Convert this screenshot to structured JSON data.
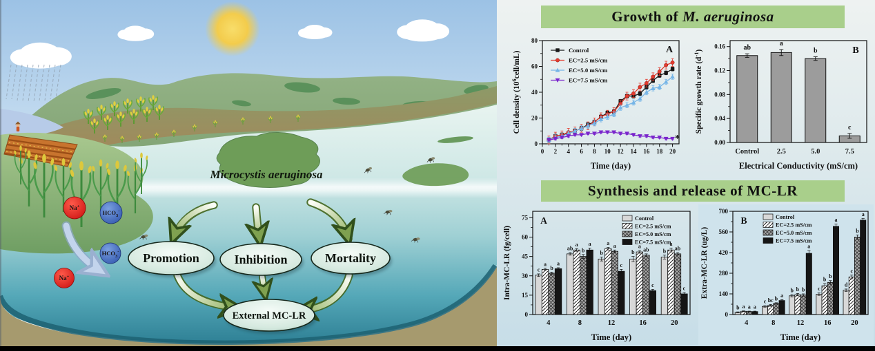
{
  "scene": {
    "organism_label": "Microcystis aeruginosa",
    "nodes": {
      "promotion": "Promotion",
      "inhibition": "Inhibition",
      "mortality": "Mortality",
      "external_mclr": "External MC-LR"
    },
    "ions": {
      "na_base": "Na",
      "na_sup": "+",
      "hco3_base": "HCO",
      "hco3_sub": "3",
      "hco3_sup": "-"
    }
  },
  "headers": {
    "growth_prefix": "Growth of",
    "growth_italic": "M. aeruginosa",
    "synthesis": "Synthesis and release of MC-LR",
    "header_bg": "#a9cf8b"
  },
  "chart_data": [
    {
      "id": "chart-growth-line",
      "type": "line",
      "panel_label": "A",
      "xlabel": "Time (day)",
      "ylabel_parts": [
        {
          "t": "Cell density (10"
        },
        {
          "t": "6",
          "sup": true
        },
        {
          "t": "cell/mL)"
        }
      ],
      "xlim": [
        0,
        21
      ],
      "ylim": [
        0,
        80
      ],
      "xticks": [
        0,
        2,
        4,
        6,
        8,
        10,
        12,
        14,
        16,
        18,
        20
      ],
      "yticks": [
        0,
        20,
        40,
        60,
        80
      ],
      "x": [
        1,
        2,
        3,
        4,
        5,
        6,
        7,
        8,
        9,
        10,
        11,
        12,
        13,
        14,
        15,
        16,
        17,
        18,
        19,
        20
      ],
      "series": [
        {
          "name": "Control",
          "color": "#1a1a1a",
          "marker": "square",
          "err": 1.5,
          "values": [
            3,
            6,
            7,
            8,
            10,
            12,
            15,
            17,
            21,
            24,
            25,
            33,
            37,
            37,
            39,
            44,
            49,
            53,
            55,
            58
          ]
        },
        {
          "name": "EC=2.5 mS/cm",
          "color": "#e23b2e",
          "marker": "circle",
          "err": 3,
          "values": [
            3,
            6,
            7,
            9,
            10,
            12,
            14,
            17,
            21,
            23,
            25,
            31,
            37,
            39,
            44,
            47,
            52,
            56,
            61,
            63
          ]
        },
        {
          "name": "EC=5.0 mS/cm",
          "color": "#76b5e7",
          "marker": "triangle-up",
          "err": 2,
          "values": [
            3,
            5,
            6,
            8,
            10,
            12,
            14,
            16,
            19,
            21,
            23,
            28,
            30,
            32,
            35,
            40,
            43,
            44,
            48,
            52
          ]
        },
        {
          "name": "EC=7.5 mS/cm",
          "color": "#7a25cc",
          "marker": "triangle-down",
          "err": 0.8,
          "values": [
            3,
            4,
            5,
            6,
            7,
            7,
            8,
            8,
            9,
            9,
            9,
            8,
            8,
            7,
            6,
            6,
            5,
            5,
            4,
            4
          ]
        }
      ],
      "end_annotation": "*"
    },
    {
      "id": "chart-growth-rate",
      "type": "bar",
      "panel_label": "B",
      "xlabel": "Electrical Conductivity (mS/cm)",
      "ylabel_parts": [
        {
          "t": "Specific growth rate (d"
        },
        {
          "t": "-1",
          "sup": true
        },
        {
          "t": ")"
        }
      ],
      "categories": [
        "Control",
        "2.5",
        "5.0",
        "7.5"
      ],
      "values": [
        0.145,
        0.15,
        0.14,
        0.011
      ],
      "errors": [
        0.003,
        0.005,
        0.003,
        0.004
      ],
      "letters": [
        "ab",
        "a",
        "b",
        "c"
      ],
      "ylim": [
        0,
        0.17
      ],
      "yticks": [
        0,
        0.04,
        0.08,
        0.12,
        0.16
      ],
      "ytick_decimals": 2,
      "bar_color": "#9c9c9c"
    },
    {
      "id": "chart-intra",
      "type": "grouped-bar",
      "panel_label": "A",
      "xlabel": "Time (day)",
      "ylabel_parts": [
        {
          "t": "Intra-MC-LR (fg/cell)"
        }
      ],
      "categories": [
        "4",
        "8",
        "12",
        "16",
        "20"
      ],
      "ylim": [
        0,
        80
      ],
      "yticks": [
        0,
        15,
        30,
        45,
        60,
        75
      ],
      "legend_pos": "top-right",
      "series": [
        {
          "name": "Control",
          "fill": "solid-light",
          "values": [
            30.5,
            47,
            43,
            43,
            44.5
          ],
          "errors": [
            1,
            1,
            1.5,
            2,
            1.5
          ],
          "letters": [
            "c",
            "ab",
            "b",
            "b",
            "b"
          ]
        },
        {
          "name": "EC=2.5 mS/cm",
          "fill": "hatch-diag",
          "values": [
            35,
            50,
            51,
            48.5,
            50
          ],
          "errors": [
            0.8,
            1,
            1,
            1,
            1.5
          ],
          "letters": [
            "a",
            "a",
            "a",
            "a",
            "a"
          ]
        },
        {
          "name": "EC=5.0 mS/cm",
          "fill": "hatch-cross",
          "values": [
            32,
            45,
            49,
            46,
            47
          ],
          "errors": [
            0.8,
            1.5,
            1,
            1,
            1
          ],
          "letters": [
            "b",
            "b",
            "a",
            "ab",
            "ab"
          ]
        },
        {
          "name": "EC=7.5 mS/cm",
          "fill": "solid-black",
          "values": [
            35.5,
            50,
            33.5,
            18.5,
            16
          ],
          "errors": [
            0.8,
            1.5,
            1.5,
            1,
            1
          ],
          "letters": [
            "a",
            "a",
            "c",
            "c",
            "c"
          ]
        }
      ]
    },
    {
      "id": "chart-extra",
      "type": "grouped-bar",
      "panel_label": "B",
      "xlabel": "Time (day)",
      "ylabel_parts": [
        {
          "t": "Extra-MC-LR (ug/L)"
        }
      ],
      "categories": [
        "4",
        "8",
        "12",
        "16",
        "20"
      ],
      "ylim": [
        0,
        700
      ],
      "yticks": [
        0,
        140,
        280,
        420,
        560,
        700
      ],
      "legend_pos": "top-left",
      "bg": "#cfe3ec",
      "series": [
        {
          "name": "Control",
          "fill": "solid-light",
          "values": [
            15,
            55,
            127,
            138,
            165
          ],
          "errors": [
            3,
            5,
            8,
            8,
            8
          ],
          "letters": [
            "b",
            "c",
            "b",
            "c",
            "d"
          ]
        },
        {
          "name": "EC=2.5 mS/cm",
          "fill": "hatch-diag",
          "values": [
            22,
            62,
            135,
            195,
            255
          ],
          "errors": [
            3,
            6,
            8,
            15,
            12
          ],
          "letters": [
            "a",
            "bc",
            "b",
            "b",
            "c"
          ]
        },
        {
          "name": "EC=5.0 mS/cm",
          "fill": "hatch-cross",
          "values": [
            20,
            75,
            132,
            218,
            525
          ],
          "errors": [
            3,
            5,
            8,
            12,
            15
          ],
          "letters": [
            "a",
            "b",
            "b",
            "b",
            "b"
          ]
        },
        {
          "name": "EC=7.5 mS/cm",
          "fill": "solid-black",
          "values": [
            20,
            95,
            415,
            598,
            640
          ],
          "errors": [
            3,
            6,
            18,
            15,
            12
          ],
          "letters": [
            "a",
            "a",
            "a",
            "a",
            "a"
          ]
        }
      ]
    }
  ]
}
